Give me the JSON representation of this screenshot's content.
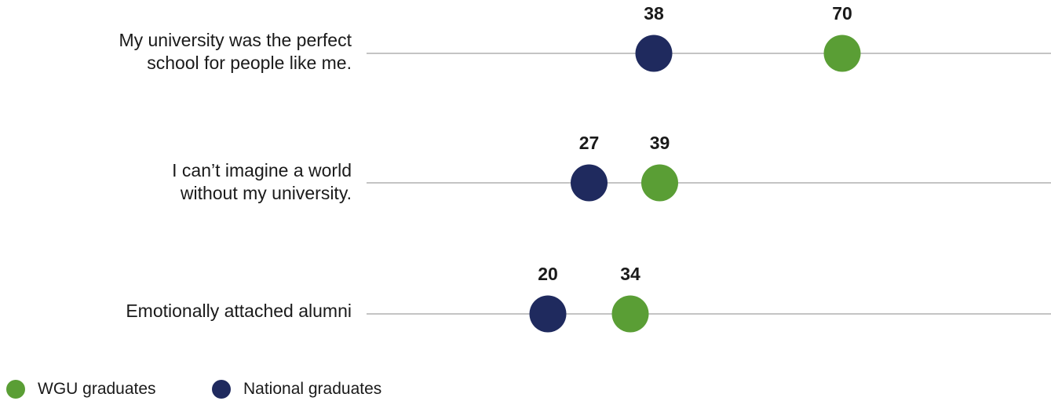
{
  "colors": {
    "wgu": "#5a9e35",
    "national": "#1f2a5e",
    "axis_line": "#c4c4c4"
  },
  "legend": {
    "wgu_label": "WGU graduates",
    "national_label": "National graduates"
  },
  "chart_data": {
    "type": "scatter",
    "title": "",
    "xlabel": "",
    "ylabel": "",
    "xlim": [
      0,
      100
    ],
    "grid": false,
    "legend_position": "bottom-left",
    "categories": [
      "My university was the perfect school for people like me.",
      "I can’t imagine a world without my university.",
      "Emotionally attached alumni"
    ],
    "category_lines": [
      [
        "My university was the perfect",
        "school for people like me."
      ],
      [
        "I can’t imagine a world",
        "without my university."
      ],
      [
        "Emotionally attached alumni"
      ]
    ],
    "series": [
      {
        "name": "National graduates",
        "values": [
          38,
          27,
          20
        ]
      },
      {
        "name": "WGU graduates",
        "values": [
          70,
          39,
          34
        ]
      }
    ]
  }
}
